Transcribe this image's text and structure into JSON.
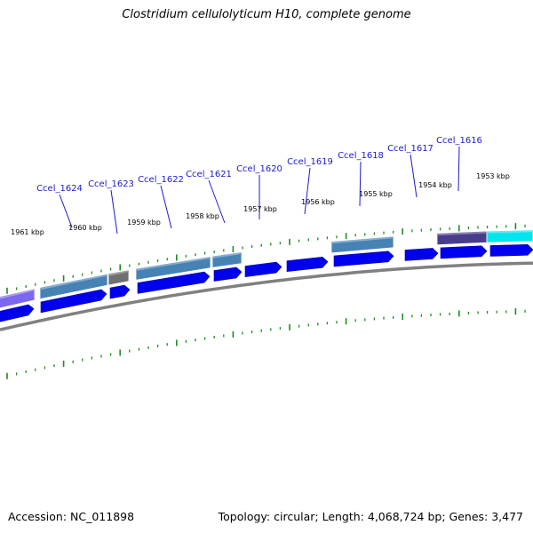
{
  "title": "Clostridium cellulolyticum H10, complete genome",
  "footer": {
    "accession": "Accession: NC_011898",
    "summary": "Topology: circular; Length: 4,068,724 bp; Genes: 3,477"
  },
  "colors": {
    "backbone": "#808080",
    "cds_arrow": "#0000ee",
    "tick": "#1e8c1e",
    "label": "#1a1acc",
    "ring_steelblue": "#4682b4",
    "ring_slateblue": "#7b68ee",
    "ring_gray": "#707070",
    "ring_darkslate": "#483d8b",
    "ring_cyan": "#00e5ee"
  },
  "kbp_labels": [
    "1961 kbp",
    "1960 kbp",
    "1959 kbp",
    "1958 kbp",
    "1957 kbp",
    "1956 kbp",
    "1955 kbp",
    "1954 kbp",
    "1953 kbp"
  ],
  "gene_labels": [
    "Ccel_1624",
    "Ccel_1623",
    "Ccel_1622",
    "Ccel_1621",
    "Ccel_1620",
    "Ccel_1619",
    "Ccel_1618",
    "Ccel_1617",
    "Ccel_1616"
  ]
}
